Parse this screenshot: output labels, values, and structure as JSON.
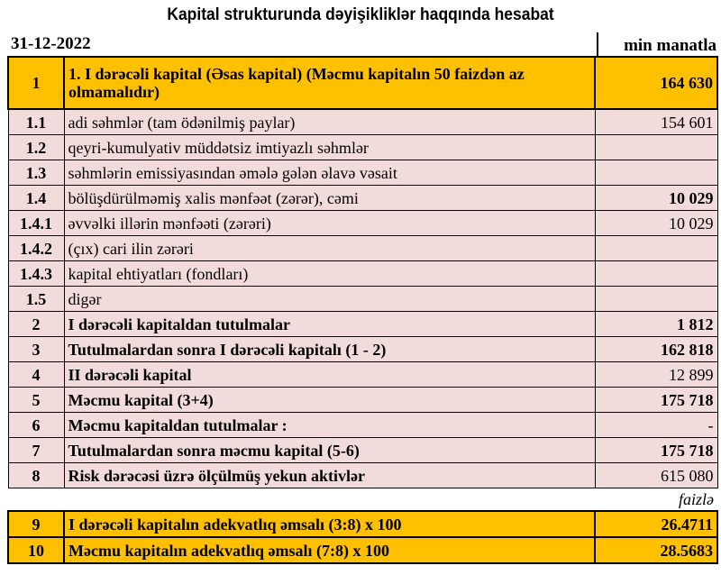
{
  "title": "Kapital strukturunda dəyişikliklər haqqında hesabat",
  "date": "31-12-2022",
  "unit": "min manatla",
  "percent_unit": "faizlə",
  "colors": {
    "highlight": "#FFC000",
    "row": "#F2DCDB"
  },
  "rows": [
    {
      "num": "1",
      "label": "1. I dərəcəli kapital (Əsas kapital) (Məcmu kapitalın 50 faizdən  az olmamalıdır)",
      "value": "164 630"
    },
    {
      "num": "1.1",
      "label": "adi səhmlər (tam ödənilmiş paylar)",
      "value": "154 601"
    },
    {
      "num": "1.2",
      "label": "qeyri-kumulyativ müddətsiz imtiyazlı səhmlər",
      "value": ""
    },
    {
      "num": "1.3",
      "label": "səhmlərin emissiyasından əmələ gələn  əlavə vəsait",
      "value": ""
    },
    {
      "num": "1.4",
      "label": "bölüşdürülməmiş xalis mənfəət (zərər), cəmi",
      "value": "10 029"
    },
    {
      "num": "1.4.1",
      "label": "əvvəlki illərin mənfəəti (zərəri)",
      "value": "10 029"
    },
    {
      "num": "1.4.2",
      "label": "(çıx) cari ilin zərəri",
      "value": ""
    },
    {
      "num": "1.4.3",
      "label": "kapital ehtiyatları (fondları)",
      "value": ""
    },
    {
      "num": "1.5",
      "label": "digər",
      "value": ""
    },
    {
      "num": "2",
      "label": "I dərəcəli kapitaldan  tutulmalar",
      "value": "1 812"
    },
    {
      "num": "3",
      "label": "Tutulmalardan  sonra I dərəcəli kapitalı (1 - 2)",
      "value": "162 818"
    },
    {
      "num": "4",
      "label": "II dərəcəli  kapital",
      "value": "12 899"
    },
    {
      "num": "5",
      "label": "Məcmu kapital (3+4)",
      "value": "175 718"
    },
    {
      "num": "6",
      "label": "Məcmu kapitaldan tutulmalar :",
      "value": "-"
    },
    {
      "num": "7",
      "label": "Tutulmalardan sonra məcmu kapital (5-6)",
      "value": "175 718"
    },
    {
      "num": "8",
      "label": "Risk dərəcəsi üzrə ölçülmüş  yekun aktivlər",
      "value": "615 080"
    },
    {
      "num": "9",
      "label": "I dərəcəli  kapitalın  adekvatlıq əmsalı (3:8) x 100",
      "value": "26.4711"
    },
    {
      "num": "10",
      "label": "Məcmu kapitalın  adekvatlıq  əmsalı (7:8) x 100",
      "value": "28.5683"
    }
  ]
}
